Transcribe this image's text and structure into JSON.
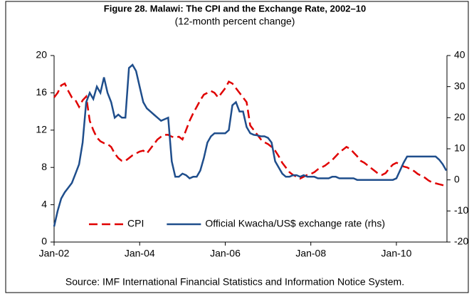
{
  "chart_data": {
    "type": "line",
    "title": "Figure 28. Malawi: The CPI and the Exchange Rate, 2002–10",
    "subtitle": "(12-month percent change)",
    "source": "Source: IMF International Financial Statistics and Information Notice System.",
    "categories": [
      "Jan-02",
      null,
      null,
      null,
      null,
      null,
      null,
      null,
      null,
      null,
      null,
      null,
      null,
      null,
      null,
      null,
      null,
      null,
      null,
      null,
      null,
      null,
      null,
      null,
      "Jan-04",
      null,
      null,
      null,
      null,
      null,
      null,
      null,
      null,
      null,
      null,
      null,
      null,
      null,
      null,
      null,
      null,
      null,
      null,
      null,
      null,
      null,
      null,
      null,
      "Jan-06",
      null,
      null,
      null,
      null,
      null,
      null,
      null,
      null,
      null,
      null,
      null,
      null,
      null,
      null,
      null,
      null,
      null,
      null,
      null,
      null,
      null,
      null,
      null,
      "Jan-08",
      null,
      null,
      null,
      null,
      null,
      null,
      null,
      null,
      null,
      null,
      null,
      null,
      null,
      null,
      null,
      null,
      null,
      null,
      null,
      null,
      null,
      null,
      null,
      "Jan-10",
      null,
      null,
      null,
      null,
      null,
      null,
      null,
      null,
      null,
      null,
      null,
      null,
      null,
      null
    ],
    "series": [
      {
        "name": "CPI",
        "color": "#e00000",
        "dashed": true,
        "values": [
          15.5,
          16,
          16.8,
          17,
          16.2,
          15.5,
          15.2,
          14.5,
          15.2,
          15.6,
          13,
          12,
          11.2,
          10.8,
          10.6,
          10.5,
          10.2,
          9.5,
          9,
          8.7,
          8.7,
          9,
          9.3,
          9.5,
          9.7,
          9.8,
          9.5,
          10,
          10.5,
          11,
          11.3,
          11.5,
          11.5,
          11.3,
          11.2,
          11.3,
          11,
          12,
          13,
          13.8,
          14.5,
          15.2,
          15.8,
          16,
          16.2,
          16,
          15.5,
          16,
          16.5,
          17.2,
          17,
          16.5,
          16,
          15.5,
          15,
          12.5,
          12,
          11.5,
          11,
          10.7,
          10.5,
          10.2,
          9.8,
          9.2,
          8.5,
          8,
          7.5,
          7.2,
          7,
          6.8,
          7,
          7.2,
          7.3,
          7.5,
          7.8,
          8,
          8.2,
          8.5,
          8.8,
          9.2,
          9.6,
          9.9,
          10.2,
          10,
          9.6,
          9.2,
          8.7,
          8.5,
          8.2,
          7.9,
          7.6,
          7.3,
          7.2,
          7.4,
          7.9,
          8.3,
          8.5,
          8.4,
          8.1,
          8,
          7.8,
          7.6,
          7.3,
          7.1,
          6.9,
          6.6,
          6.4,
          6.3,
          6.2,
          6.1,
          6.0
        ]
      },
      {
        "name": "Official Kwacha/US$ exchange rate (rhs)",
        "color": "#1f4e8c",
        "axis": "y2",
        "values": [
          -15,
          -10,
          -6,
          -4,
          -2.5,
          -1,
          2,
          5,
          12,
          25,
          28,
          26,
          30,
          28,
          33,
          28,
          25,
          20,
          21,
          20,
          20,
          36,
          37,
          35,
          30,
          25,
          23,
          22,
          21,
          20,
          19,
          19.5,
          20,
          6,
          1,
          1,
          2,
          1.5,
          0.5,
          1,
          1,
          3,
          7,
          12,
          14,
          15,
          15,
          15,
          15,
          16,
          24,
          25,
          22,
          22,
          17,
          15,
          14.5,
          14.3,
          14,
          14,
          13.5,
          12,
          6,
          4,
          2,
          1,
          1,
          1.5,
          1.5,
          1,
          1.5,
          1,
          1,
          1,
          0.5,
          0.5,
          0.5,
          0.5,
          1,
          1,
          0.5,
          0.5,
          0.5,
          0.5,
          0.5,
          0,
          0,
          0,
          0,
          0,
          0,
          0,
          0,
          0,
          0,
          0,
          0.5,
          3,
          5.5,
          7.5,
          7.5,
          7.5,
          7.5,
          7.5,
          7.5,
          7.5,
          7.5,
          7.5,
          6.5,
          5,
          3
        ]
      }
    ],
    "ylim": [
      0,
      20
    ],
    "yticks": [
      0,
      4,
      8,
      12,
      16,
      20
    ],
    "y2lim": [
      -20,
      40
    ],
    "y2ticks": [
      -20,
      -10,
      0,
      10,
      20,
      30,
      40
    ],
    "legend": "bottom"
  }
}
